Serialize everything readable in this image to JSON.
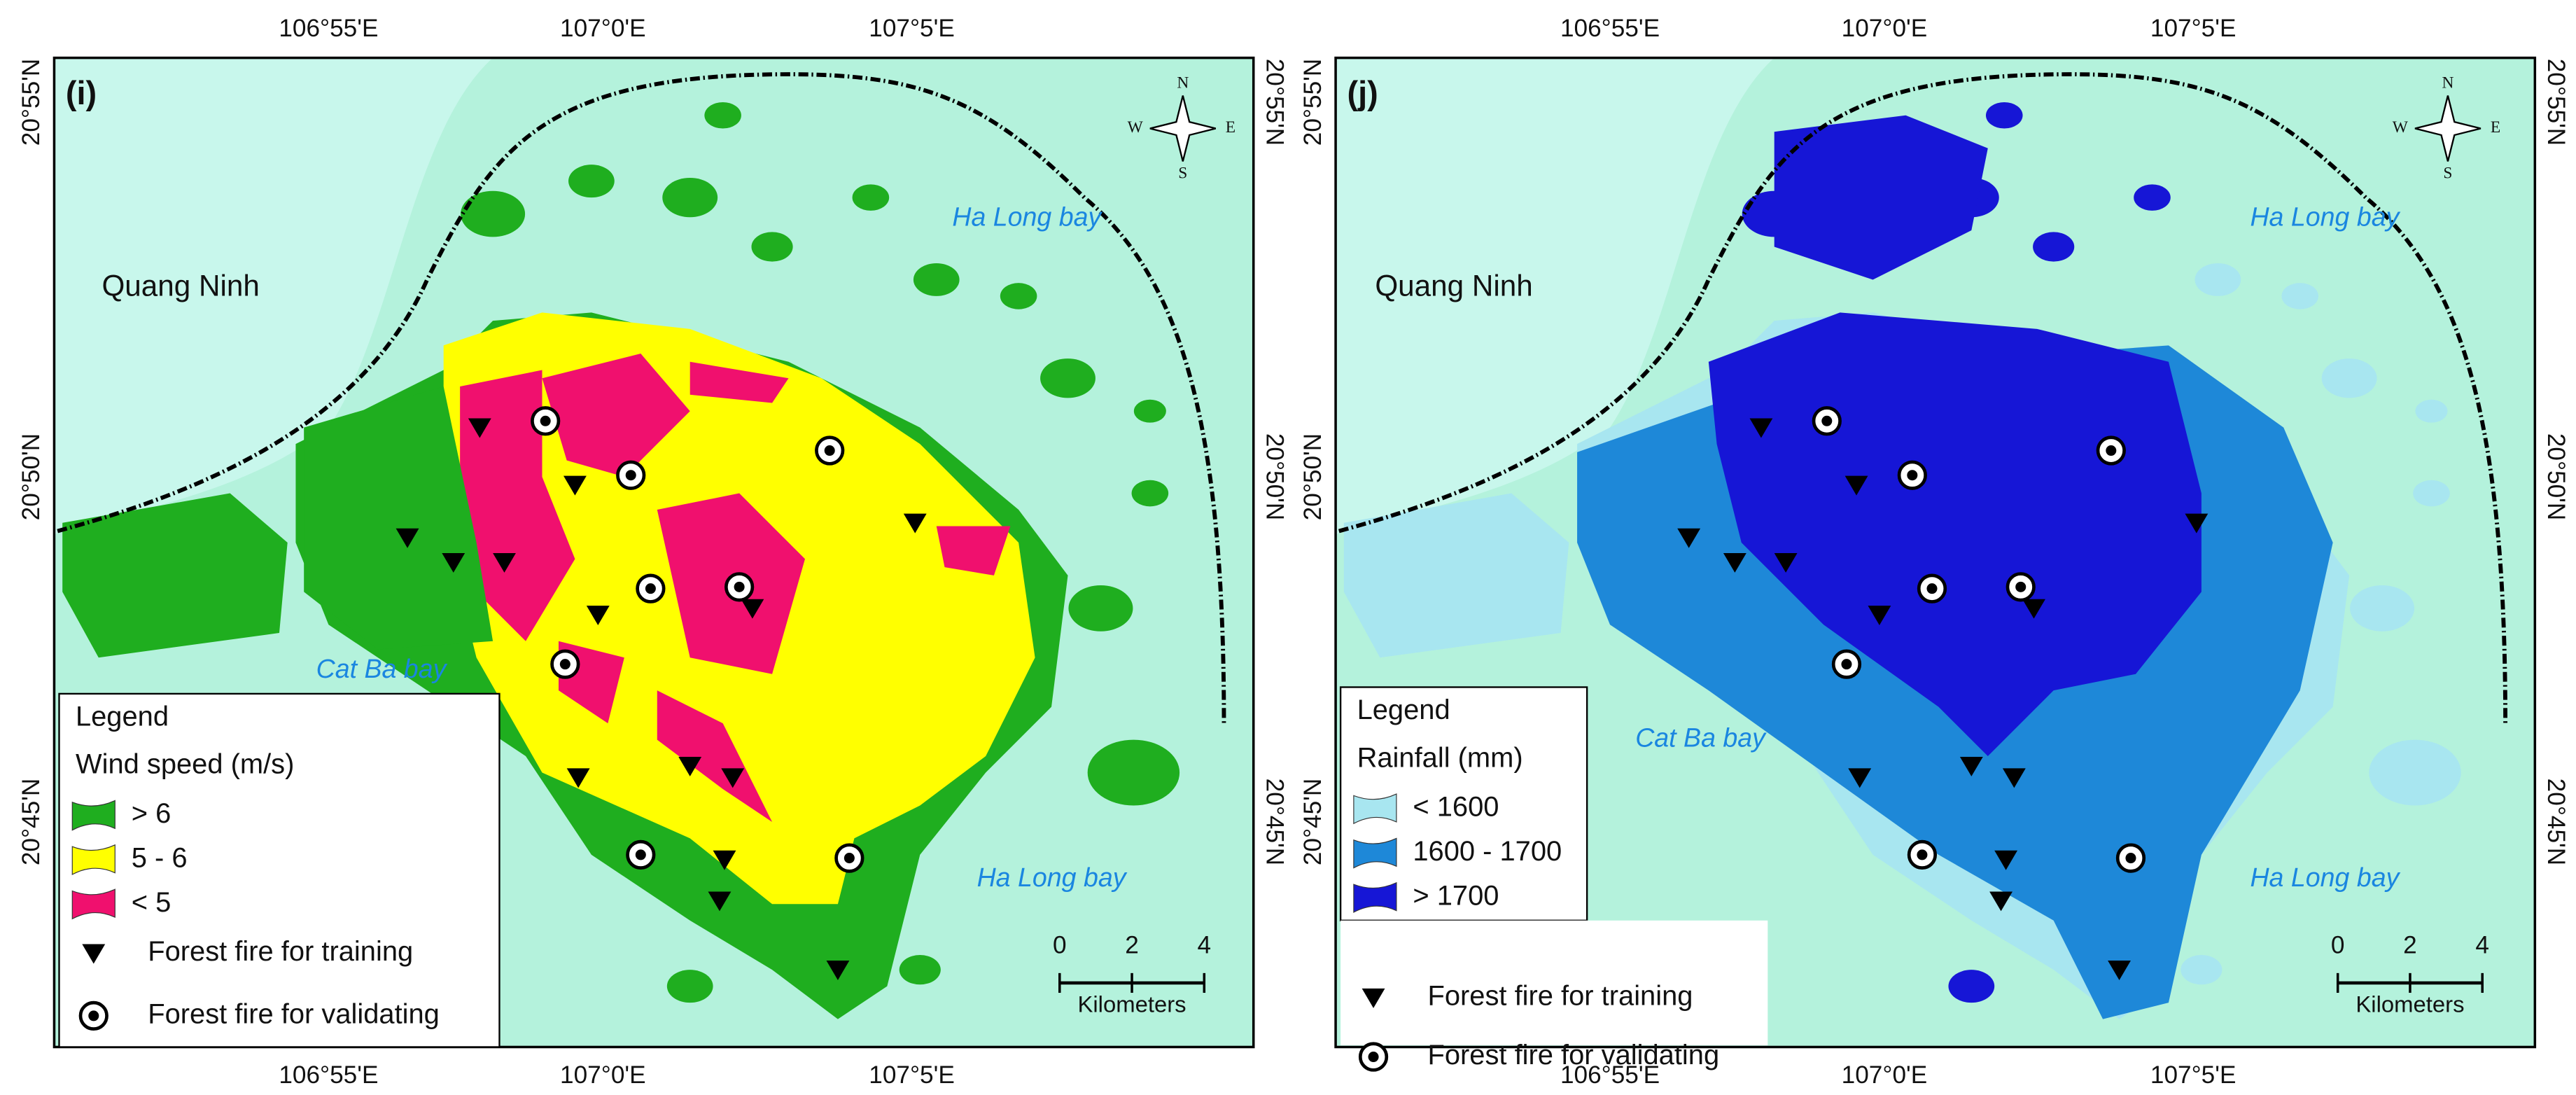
{
  "panels": [
    {
      "label": "(i)",
      "top_ticks": [
        "106°55'E",
        "107°0'E",
        "107°5'E"
      ],
      "bottom_ticks": [
        "106°55'E",
        "107°0'E",
        "107°5'E"
      ],
      "left_ticks": [
        "20°55'N",
        "20°50'N",
        "20°45'N"
      ],
      "right_ticks": [
        "20°55'N",
        "20°50'N",
        "20°45'N"
      ],
      "places": [
        "Quang Ninh",
        "Ha Long bay",
        "Cat Ba bay",
        "Ha Long bay"
      ],
      "compass": [
        "N",
        "W",
        "E",
        "S"
      ],
      "legend": {
        "title": "Legend",
        "subtitle": "Wind speed (m/s)",
        "items": [
          {
            "label": "> 6",
            "color": "#1fae1f"
          },
          {
            "label": "5 - 6",
            "color": "#ffff00"
          },
          {
            "label": "< 5",
            "color": "#f0106e"
          }
        ],
        "training": "Forest fire for training",
        "validating": "Forest fire for validating"
      },
      "scale": {
        "ticks": [
          0,
          2,
          4
        ],
        "unit": "Kilometers"
      }
    },
    {
      "label": "(j)",
      "top_ticks": [
        "106°55'E",
        "107°0'E",
        "107°5'E"
      ],
      "bottom_ticks": [
        "106°55'E",
        "107°0'E",
        "107°5'E"
      ],
      "left_ticks": [
        "20°55'N",
        "20°50'N",
        "20°45'N"
      ],
      "right_ticks": [
        "20°55'N",
        "20°50'N",
        "20°45'N"
      ],
      "places": [
        "Quang Ninh",
        "Ha Long bay",
        "Cat Ba bay",
        "Ha Long bay"
      ],
      "compass": [
        "N",
        "W",
        "E",
        "S"
      ],
      "legend": {
        "title": "Legend",
        "subtitle": "Rainfall (mm)",
        "items": [
          {
            "label": "< 1600",
            "color": "#a8e6f0"
          },
          {
            "label": "1600 - 1700",
            "color": "#1e88d8"
          },
          {
            "label": "> 1700",
            "color": "#1616d6"
          }
        ],
        "training": "Forest fire for training",
        "validating": "Forest fire for validating"
      },
      "scale": {
        "ticks": [
          0,
          2,
          4
        ],
        "unit": "Kilometers"
      }
    }
  ]
}
